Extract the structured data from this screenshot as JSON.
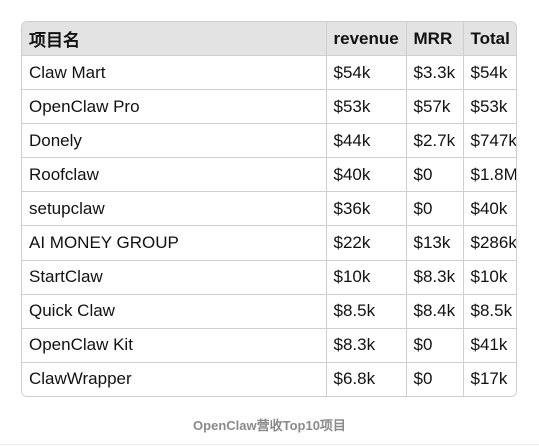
{
  "table": {
    "headers": [
      "项目名",
      "revenue",
      "MRR",
      "Total"
    ],
    "rows": [
      [
        "Claw Mart",
        "$54k",
        "$3.3k",
        "$54k"
      ],
      [
        "OpenClaw Pro",
        "$53k",
        "$57k",
        "$53k"
      ],
      [
        "Donely",
        "$44k",
        "$2.7k",
        "$747k"
      ],
      [
        "Roofclaw",
        "$40k",
        "$0",
        "$1.8M"
      ],
      [
        "setupclaw",
        "$36k",
        "$0",
        "$40k"
      ],
      [
        "AI MONEY GROUP",
        "$22k",
        "$13k",
        "$286k"
      ],
      [
        "StartClaw",
        "$10k",
        "$8.3k",
        "$10k"
      ],
      [
        "Quick Claw",
        "$8.5k",
        "$8.4k",
        "$8.5k"
      ],
      [
        "OpenClaw Kit",
        "$8.3k",
        "$0",
        "$41k"
      ],
      [
        "ClawWrapper",
        "$6.8k",
        "$0",
        "$17k"
      ]
    ]
  },
  "caption": "OpenClaw营收Top10项目"
}
